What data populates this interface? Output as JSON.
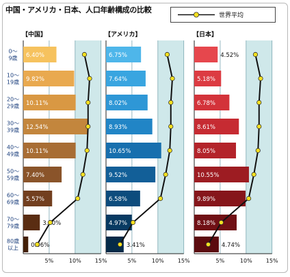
{
  "title": "中国・アメリカ・日本、人口年齢構成の比較",
  "legend": {
    "label": "世界平均",
    "line_color": "#111111",
    "marker_color": "#f5e020"
  },
  "chart_data": {
    "type": "bar",
    "orientation": "horizontal",
    "title": "中国・アメリカ・日本、人口年齢構成の比較",
    "categories": [
      "0〜9歳",
      "10〜19歳",
      "20〜29歳",
      "30〜39歳",
      "40〜49歳",
      "50〜59歳",
      "60〜69歳",
      "70〜79歳",
      "80歳以上"
    ],
    "category_labels": [
      [
        "0〜",
        "9歳"
      ],
      [
        "10〜",
        "19歳"
      ],
      [
        "20〜",
        "29歳"
      ],
      [
        "30〜",
        "39歳"
      ],
      [
        "40〜",
        "49歳"
      ],
      [
        "50〜",
        "59歳"
      ],
      [
        "60〜",
        "69歳"
      ],
      [
        "70〜",
        "79歳"
      ],
      [
        "80歳",
        "以上"
      ]
    ],
    "x_ticks": [
      "5%",
      "10%",
      "15%"
    ],
    "xlim": [
      0,
      15
    ],
    "panels": [
      {
        "name": "【中国】",
        "values": [
          6.4,
          9.82,
          10.11,
          12.54,
          10.11,
          7.4,
          5.57,
          3.2,
          0.96
        ],
        "value_labels": [
          "6.40%",
          "9.82%",
          "10.11%",
          "12.54%",
          "10.11%",
          "7.40%",
          "5.57%",
          "3.20%",
          "0.96%"
        ],
        "colors": [
          "#f6c25e",
          "#e9a94f",
          "#d99843",
          "#c3863d",
          "#a86d34",
          "#8a542a",
          "#723f1f",
          "#5a2d12",
          "#432008"
        ]
      },
      {
        "name": "【アメリカ】",
        "values": [
          6.75,
          7.64,
          8.02,
          8.93,
          10.65,
          9.52,
          6.58,
          4.97,
          3.41
        ],
        "value_labels": [
          "6.75%",
          "7.64%",
          "8.02%",
          "8.93%",
          "10.65%",
          "9.52%",
          "6.58%",
          "4.97%",
          "3.41%"
        ],
        "colors": [
          "#4eb6ea",
          "#39a5e0",
          "#2e97d6",
          "#2185c6",
          "#176fae",
          "#125f98",
          "#0d4c7d",
          "#083a62",
          "#052a48"
        ]
      },
      {
        "name": "【日本】",
        "values": [
          4.52,
          5.18,
          6.78,
          8.61,
          8.05,
          10.55,
          9.89,
          8.18,
          4.74
        ],
        "value_labels": [
          "4.52%",
          "5.18%",
          "6.78%",
          "8.61%",
          "8.05%",
          "10.55%",
          "9.89%",
          "8.18%",
          "4.74%"
        ],
        "colors": [
          "#e6474d",
          "#dc3b42",
          "#d3333a",
          "#c62b32",
          "#b3232a",
          "#9d1c22",
          "#86161b",
          "#701015",
          "#5b0b0f"
        ]
      }
    ],
    "series": [
      {
        "name": "世界平均",
        "type": "line",
        "values": [
          11.8,
          12.8,
          12.5,
          12.5,
          12.3,
          11.5,
          10.5,
          5.2,
          2.7
        ]
      }
    ],
    "shaded_band": [
      10,
      15
    ],
    "shaded_band_color": "#cfe8ea"
  }
}
